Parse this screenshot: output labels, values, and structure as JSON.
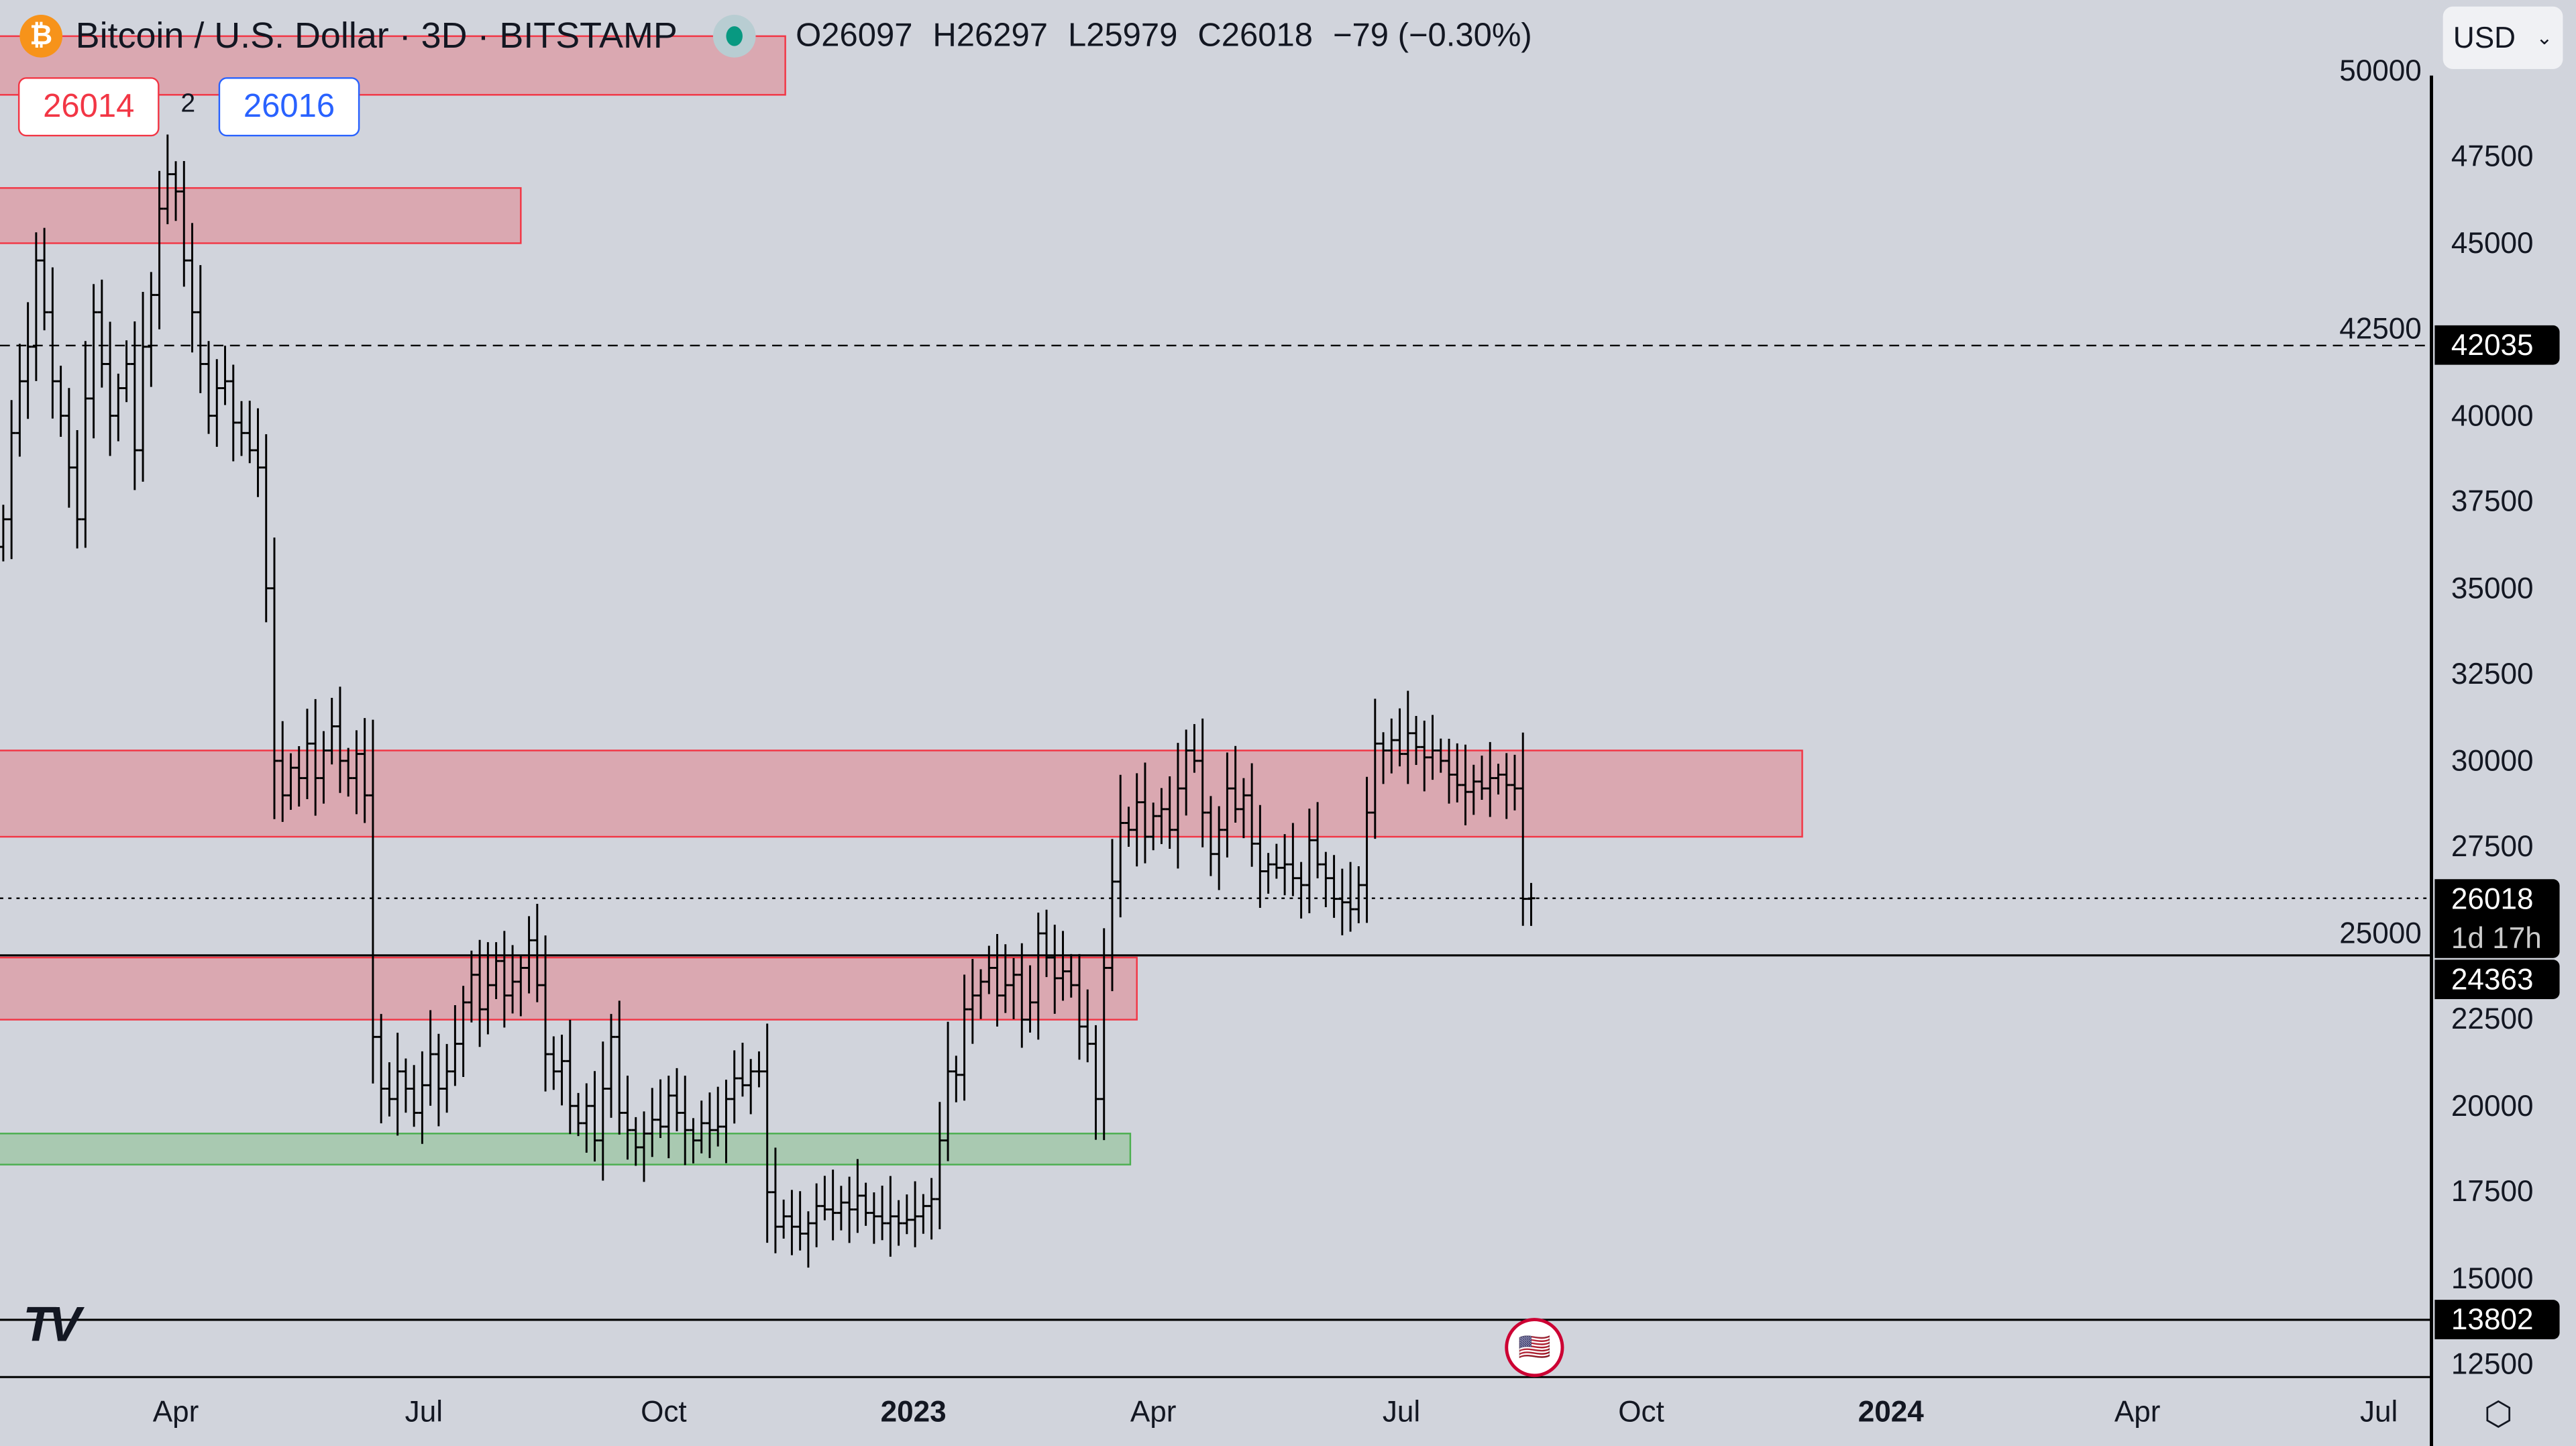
{
  "header": {
    "symbol_title": "Bitcoin / U.S. Dollar · 3D · BITSTAMP",
    "btc_icon": "bitcoin-icon",
    "ohlc": {
      "o": "O26097",
      "h": "H26297",
      "l": "L25979",
      "c": "C26018",
      "change": "−79 (−0.30%)"
    },
    "market_status": "open",
    "status_color": "#089981"
  },
  "order_panel": {
    "sell": "26014",
    "spread": "2",
    "buy": "26016",
    "sell_color": "#f23645",
    "buy_color": "#2962ff"
  },
  "currency_select": "USD",
  "price_axis": {
    "ticks": [
      "50000",
      "47500",
      "45000",
      "42500",
      "40000",
      "37500",
      "35000",
      "32500",
      "30000",
      "27500",
      "25000",
      "22500",
      "20000",
      "17500",
      "15000",
      "12500"
    ],
    "tags": [
      {
        "value": "42035",
        "label": "42035"
      },
      {
        "value": "26018",
        "label": "26018",
        "sub": "1d 17h"
      },
      {
        "value": "24363",
        "label": "24363"
      },
      {
        "value": "13802",
        "label": "13802"
      }
    ]
  },
  "time_axis": {
    "labels": [
      {
        "t": "Apr",
        "bold": false
      },
      {
        "t": "Jul",
        "bold": false
      },
      {
        "t": "Oct",
        "bold": false
      },
      {
        "t": "2023",
        "bold": true
      },
      {
        "t": "Apr",
        "bold": false
      },
      {
        "t": "Jul",
        "bold": false
      },
      {
        "t": "Oct",
        "bold": false
      },
      {
        "t": "2024",
        "bold": true
      },
      {
        "t": "Apr",
        "bold": false
      },
      {
        "t": "Jul",
        "bold": false
      }
    ]
  },
  "chart_data": {
    "type": "ohlc-bar",
    "interval": "3D",
    "ylim": [
      12000,
      51000
    ],
    "grid": false,
    "closes": [
      37000,
      39500,
      41000,
      42000,
      44500,
      43000,
      41000,
      40000,
      38500,
      37000,
      40500,
      43000,
      41500,
      40000,
      40800,
      41500,
      39000,
      42000,
      43500,
      46000,
      47000,
      46500,
      44500,
      43000,
      41500,
      40000,
      40800,
      41000,
      39800,
      39500,
      39000,
      38500,
      35000,
      30000,
      29000,
      29800,
      29500,
      30500,
      29500,
      30300,
      31000,
      30000,
      29500,
      30200,
      29000,
      22000,
      20500,
      20200,
      21000,
      20500,
      19800,
      20600,
      21500,
      20500,
      21000,
      21800,
      23000,
      23800,
      22800,
      23500,
      24200,
      23200,
      23600,
      24000,
      24800,
      23500,
      21500,
      21000,
      21300,
      20000,
      19500,
      20000,
      19000,
      20500,
      22000,
      19800,
      19300,
      18800,
      19200,
      19600,
      19400,
      20300,
      19800,
      19300,
      19000,
      19500,
      19300,
      19400,
      20200,
      20800,
      20600,
      21000,
      21000,
      17500,
      16500,
      16800,
      16500,
      16300,
      16600,
      17100,
      17000,
      16900,
      17200,
      17000,
      17400,
      16900,
      16800,
      16600,
      16800,
      16600,
      16700,
      16800,
      17100,
      17300,
      19000,
      21000,
      20900,
      22800,
      23200,
      23600,
      24000,
      23200,
      23500,
      23800,
      22500,
      23000,
      25000,
      24300,
      23700,
      23900,
      23500,
      22300,
      21800,
      20200,
      24000,
      26500,
      28200,
      28000,
      28800,
      27800,
      28400,
      28600,
      28000,
      29200,
      30300,
      30000,
      28500,
      27300,
      28000,
      29200,
      28600,
      29000,
      27600,
      26800,
      27000,
      26900,
      27000,
      26600,
      26400,
      27700,
      27000,
      26600,
      26000,
      25900,
      25700,
      26400,
      28500,
      30500,
      30300,
      30600,
      30200,
      30800,
      30400,
      30100,
      30300,
      30000,
      29600,
      29300,
      29100,
      29400,
      29200,
      29500,
      29600,
      29300,
      29200,
      26000,
      26018
    ],
    "zones": [
      {
        "kind": "resistance",
        "low": 49300,
        "high": 51000,
        "color": "#f23645"
      },
      {
        "kind": "resistance",
        "low": 45000,
        "high": 46600,
        "color": "#f23645"
      },
      {
        "kind": "resistance",
        "low": 27800,
        "high": 30300,
        "color": "#f23645"
      },
      {
        "kind": "resistance",
        "low": 22500,
        "high": 24300,
        "color": "#f23645"
      },
      {
        "kind": "support",
        "low": 18300,
        "high": 19200,
        "color": "#4caf50"
      }
    ],
    "levels": [
      {
        "value": 42035,
        "style": "dashed"
      },
      {
        "value": 26018,
        "style": "dotted"
      },
      {
        "value": 24363,
        "style": "solid"
      },
      {
        "value": 13802,
        "style": "solid"
      }
    ]
  }
}
